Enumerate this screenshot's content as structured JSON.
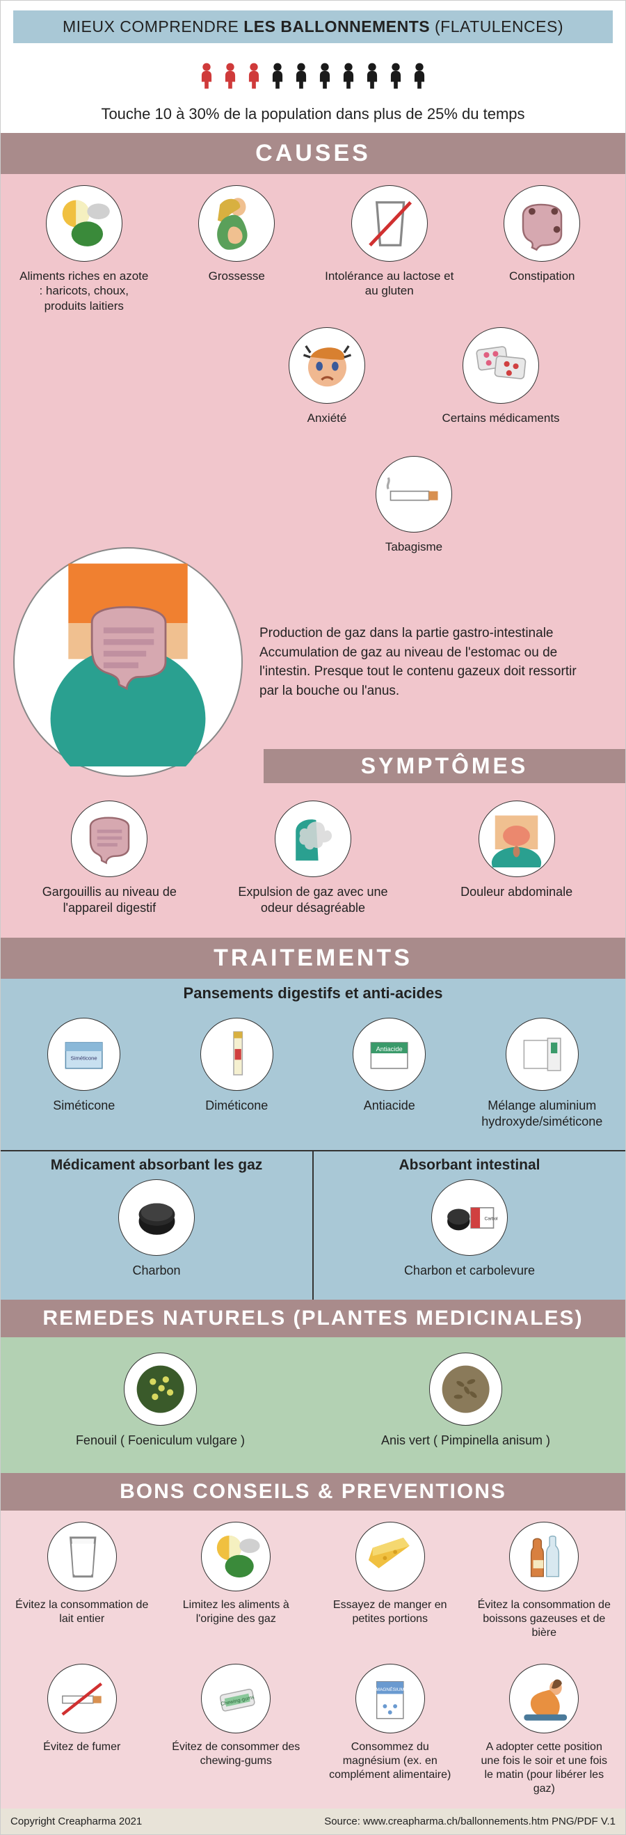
{
  "title": {
    "pre": "MIEUX COMPRENDRE ",
    "bold": "LES BALLONNEMENTS",
    "post": " (FLATULENCES)"
  },
  "people": {
    "total": 10,
    "red": 3,
    "red_color": "#cf3a3a",
    "black_color": "#1a1a1a"
  },
  "subtitle": "Touche 10 à 30% de la population dans plus de 25% du temps",
  "headers": {
    "causes": "CAUSES",
    "symptomes": "SYMPTÔMES",
    "traitements": "TRAITEMENTS",
    "remedes": "REMEDES NATURELS (PLANTES MEDICINALES)",
    "conseils": "BONS CONSEILS & PREVENTIONS"
  },
  "causes1": [
    {
      "label": "Aliments riches en azote : haricots, choux, produits laitiers",
      "icon": "food"
    },
    {
      "label": "Grossesse",
      "icon": "pregnant"
    },
    {
      "label": "Intolérance au lactose et au gluten",
      "icon": "glass-no"
    },
    {
      "label": "Constipation",
      "icon": "colon"
    }
  ],
  "causes2": [
    {
      "label": "Anxiété",
      "icon": "anxiety"
    },
    {
      "label": "Certains médicaments",
      "icon": "pills"
    },
    {
      "label": "Tabagisme",
      "icon": "cigarette"
    }
  ],
  "description": "Production de gaz dans la partie gastro-intestinale Accumulation de gaz au niveau de l'estomac ou de l'intestin. Presque tout le contenu gazeux doit ressortir par la bouche ou l'anus.",
  "symptomes": [
    {
      "label": "Gargouillis au niveau de l'appareil digestif",
      "icon": "intestine"
    },
    {
      "label": "Expulsion de gaz avec une odeur désagréable",
      "icon": "gas"
    },
    {
      "label": "Douleur abdominale",
      "icon": "pain"
    }
  ],
  "trait_sub1": "Pansements digestifs et anti-acides",
  "trait1": [
    {
      "label": "Siméticone",
      "icon": "box-blue"
    },
    {
      "label": "Diméticone",
      "icon": "tube"
    },
    {
      "label": "Antiacide",
      "icon": "box-green"
    },
    {
      "label": "Mélange aluminium hydroxyde/siméticone",
      "icon": "box-white"
    }
  ],
  "trait_sub2a": "Médicament absorbant les gaz",
  "trait_sub2b": "Absorbant intestinal",
  "trait2a": {
    "label": "Charbon",
    "icon": "charcoal"
  },
  "trait2b": {
    "label": "Charbon et carbolevure",
    "icon": "charcoal-box"
  },
  "remedes": [
    {
      "label": "Fenouil  ( Foeniculum vulgare )",
      "icon": "fennel"
    },
    {
      "label": "Anis vert ( Pimpinella anisum )",
      "icon": "anise"
    }
  ],
  "tips1": [
    {
      "label": "Évitez la consommation de lait entier",
      "icon": "glass"
    },
    {
      "label": "Limitez les aliments à l'origine des gaz",
      "icon": "food"
    },
    {
      "label": "Essayez de manger en petites portions",
      "icon": "cheese"
    },
    {
      "label": "Évitez la consommation de boissons gazeuses et de bière",
      "icon": "bottles"
    }
  ],
  "tips2": [
    {
      "label": "Évitez de fumer",
      "icon": "cig-no"
    },
    {
      "label": "Évitez de consommer des chewing-gums",
      "icon": "gum"
    },
    {
      "label": "Consommez du magnésium (ex. en complément alimentaire)",
      "icon": "mag-box"
    },
    {
      "label": "A adopter cette position une fois le soir et une fois le matin (pour libérer les gaz)",
      "icon": "pose"
    }
  ],
  "footer": {
    "left": "Copyright Creapharma 2021",
    "right": "Source:  www.creapharma.ch/ballonnements.htm PNG/PDF V.1"
  },
  "colors": {
    "pink": "#f1c6cc",
    "blue": "#a9c8d6",
    "green": "#b3d1b3",
    "brown": "#a98b8b"
  }
}
